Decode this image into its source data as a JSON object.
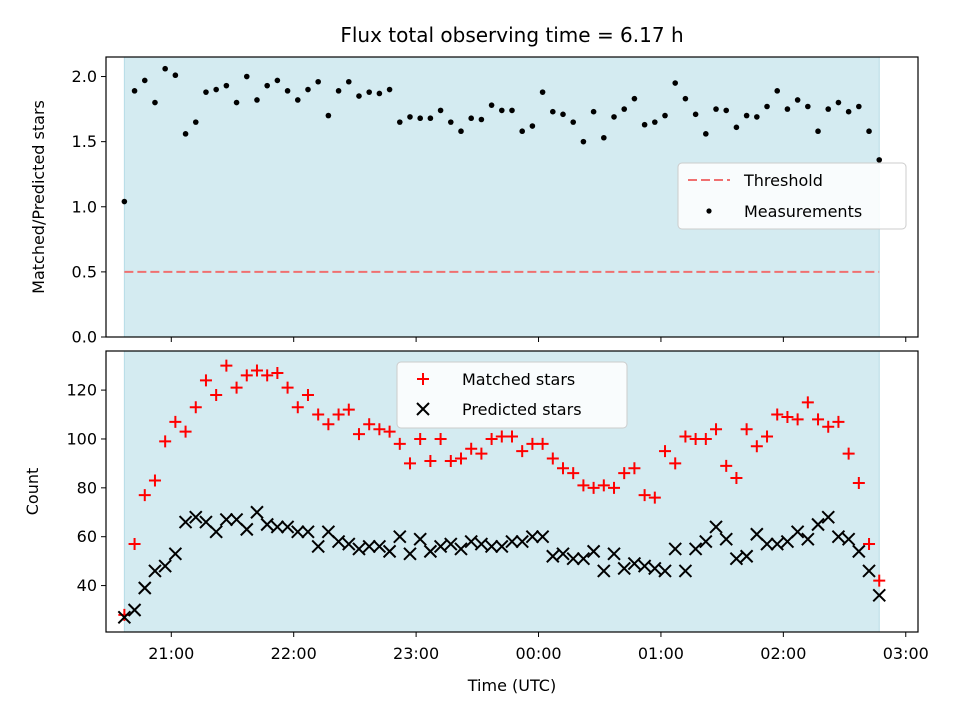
{
  "chart_data": [
    {
      "type": "scatter",
      "title": "Flux total observing time = 6.17 h",
      "ylabel": "Matched/Predicted stars",
      "xlim": [
        "20:28",
        "03:06"
      ],
      "ylim": [
        0,
        2.15
      ],
      "yticks": [
        0.0,
        0.5,
        1.0,
        1.5,
        2.0
      ],
      "ytick_labels": [
        "0.0",
        "0.5",
        "1.0",
        "1.5",
        "2.0"
      ],
      "shaded_span": [
        "20:37",
        "02:47"
      ],
      "legend_position": "center-right",
      "threshold": {
        "name": "Threshold",
        "value": 0.5,
        "color": "#f07070"
      },
      "series": [
        {
          "name": "Measurements",
          "color": "#000000",
          "marker": "dot",
          "x": [
            "20:37",
            "20:42",
            "20:47",
            "20:52",
            "20:57",
            "21:02",
            "21:07",
            "21:12",
            "21:17",
            "21:22",
            "21:27",
            "21:32",
            "21:37",
            "21:42",
            "21:47",
            "21:52",
            "21:57",
            "22:02",
            "22:07",
            "22:12",
            "22:17",
            "22:22",
            "22:27",
            "22:32",
            "22:37",
            "22:42",
            "22:47",
            "22:52",
            "22:57",
            "23:02",
            "23:07",
            "23:12",
            "23:17",
            "23:22",
            "23:27",
            "23:32",
            "23:37",
            "23:42",
            "23:47",
            "23:52",
            "23:57",
            "00:02",
            "00:07",
            "00:12",
            "00:17",
            "00:22",
            "00:27",
            "00:32",
            "00:37",
            "00:42",
            "00:47",
            "00:52",
            "00:57",
            "01:02",
            "01:07",
            "01:12",
            "01:17",
            "01:22",
            "01:27",
            "01:32",
            "01:37",
            "01:42",
            "01:47",
            "01:52",
            "01:57",
            "02:02",
            "02:07",
            "02:12",
            "02:17",
            "02:22",
            "02:27",
            "02:32",
            "02:37",
            "02:42",
            "02:47"
          ],
          "y": [
            1.04,
            1.89,
            1.97,
            1.8,
            2.06,
            2.01,
            1.56,
            1.65,
            1.88,
            1.9,
            1.93,
            1.8,
            2.0,
            1.82,
            1.93,
            1.97,
            1.89,
            1.82,
            1.9,
            1.96,
            1.7,
            1.89,
            1.96,
            1.85,
            1.88,
            1.87,
            1.9,
            1.65,
            1.69,
            1.68,
            1.68,
            1.74,
            1.65,
            1.58,
            1.68,
            1.67,
            1.78,
            1.74,
            1.74,
            1.58,
            1.62,
            1.88,
            1.73,
            1.71,
            1.65,
            1.5,
            1.73,
            1.53,
            1.69,
            1.75,
            1.83,
            1.63,
            1.65,
            1.7,
            1.95,
            1.83,
            1.71,
            1.56,
            1.75,
            1.74,
            1.61,
            1.7,
            1.69,
            1.77,
            1.89,
            1.75,
            1.82,
            1.77,
            1.58,
            1.75,
            1.8,
            1.73,
            1.77,
            1.58,
            1.36
          ]
        }
      ]
    },
    {
      "type": "scatter",
      "xlabel": "Time (UTC)",
      "ylabel": "Count",
      "xlim": [
        "20:28",
        "03:06"
      ],
      "ylim": [
        21,
        136
      ],
      "yticks": [
        40,
        60,
        80,
        100,
        120
      ],
      "xtick_labels": [
        "21:00",
        "22:00",
        "23:00",
        "00:00",
        "01:00",
        "02:00",
        "03:00"
      ],
      "shaded_span": [
        "20:37",
        "02:47"
      ],
      "legend_position": "top-center",
      "series": [
        {
          "name": "Matched stars",
          "color": "#ff0000",
          "marker": "plus",
          "x": [
            "20:37",
            "20:42",
            "20:47",
            "20:52",
            "20:57",
            "21:02",
            "21:07",
            "21:12",
            "21:17",
            "21:22",
            "21:27",
            "21:32",
            "21:37",
            "21:42",
            "21:47",
            "21:52",
            "21:57",
            "22:02",
            "22:07",
            "22:12",
            "22:17",
            "22:22",
            "22:27",
            "22:32",
            "22:37",
            "22:42",
            "22:47",
            "22:52",
            "22:57",
            "23:02",
            "23:07",
            "23:12",
            "23:17",
            "23:22",
            "23:27",
            "23:32",
            "23:37",
            "23:42",
            "23:47",
            "23:52",
            "23:57",
            "00:02",
            "00:07",
            "00:12",
            "00:17",
            "00:22",
            "00:27",
            "00:32",
            "00:37",
            "00:42",
            "00:47",
            "00:52",
            "00:57",
            "01:02",
            "01:07",
            "01:12",
            "01:17",
            "01:22",
            "01:27",
            "01:32",
            "01:37",
            "01:42",
            "01:47",
            "01:52",
            "01:57",
            "02:02",
            "02:07",
            "02:12",
            "02:17",
            "02:22",
            "02:27",
            "02:32",
            "02:37",
            "02:42",
            "02:47"
          ],
          "y": [
            28,
            57,
            77,
            83,
            99,
            107,
            103,
            113,
            124,
            118,
            130,
            121,
            126,
            128,
            126,
            127,
            121,
            113,
            118,
            110,
            106,
            110,
            112,
            102,
            106,
            104,
            103,
            98,
            90,
            100,
            91,
            100,
            91,
            92,
            96,
            94,
            100,
            101,
            101,
            95,
            98,
            98,
            92,
            88,
            86,
            81,
            80,
            81,
            80,
            86,
            88,
            77,
            76,
            95,
            90,
            101,
            100,
            100,
            104,
            89,
            84,
            104,
            97,
            101,
            110,
            109,
            108,
            115,
            108,
            105,
            107,
            94,
            82,
            57,
            42
          ]
        },
        {
          "name": "Predicted stars",
          "color": "#000000",
          "marker": "x",
          "x": [
            "20:37",
            "20:42",
            "20:47",
            "20:52",
            "20:57",
            "21:02",
            "21:07",
            "21:12",
            "21:17",
            "21:22",
            "21:27",
            "21:32",
            "21:37",
            "21:42",
            "21:47",
            "21:52",
            "21:57",
            "22:02",
            "22:07",
            "22:12",
            "22:17",
            "22:22",
            "22:27",
            "22:32",
            "22:37",
            "22:42",
            "22:47",
            "22:52",
            "22:57",
            "23:02",
            "23:07",
            "23:12",
            "23:17",
            "23:22",
            "23:27",
            "23:32",
            "23:37",
            "23:42",
            "23:47",
            "23:52",
            "23:57",
            "00:02",
            "00:07",
            "00:12",
            "00:17",
            "00:22",
            "00:27",
            "00:32",
            "00:37",
            "00:42",
            "00:47",
            "00:52",
            "00:57",
            "01:02",
            "01:07",
            "01:12",
            "01:17",
            "01:22",
            "01:27",
            "01:32",
            "01:37",
            "01:42",
            "01:47",
            "01:52",
            "01:57",
            "02:02",
            "02:07",
            "02:12",
            "02:17",
            "02:22",
            "02:27",
            "02:32",
            "02:37",
            "02:42",
            "02:47"
          ],
          "y": [
            27,
            30,
            39,
            46,
            48,
            53,
            66,
            68,
            66,
            62,
            67,
            67,
            63,
            70,
            65,
            64,
            64,
            62,
            62,
            56,
            62,
            58,
            57,
            55,
            56,
            56,
            54,
            60,
            53,
            59,
            54,
            56,
            57,
            55,
            58,
            57,
            56,
            56,
            58,
            58,
            60,
            60,
            52,
            53,
            51,
            51,
            54,
            46,
            53,
            47,
            49,
            48,
            47,
            46,
            55,
            46,
            55,
            58,
            64,
            59,
            51,
            52,
            61,
            57,
            57,
            58,
            62,
            59,
            65,
            68,
            60,
            59,
            54,
            46,
            36
          ]
        }
      ]
    }
  ]
}
